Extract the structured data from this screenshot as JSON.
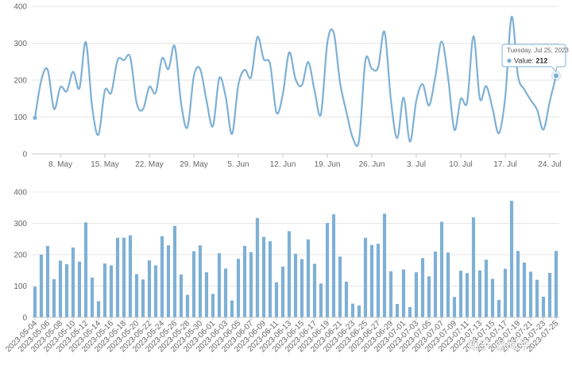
{
  "chart_data": [
    {
      "type": "line",
      "title": "",
      "xlabel": "",
      "ylabel": "",
      "ylim": [
        0,
        400
      ],
      "yticks": [
        0,
        100,
        200,
        300,
        400
      ],
      "xticks": [
        {
          "date": "2023-05-08",
          "label": "8. May"
        },
        {
          "date": "2023-05-15",
          "label": "15. May"
        },
        {
          "date": "2023-05-22",
          "label": "22. May"
        },
        {
          "date": "2023-05-29",
          "label": "29. May"
        },
        {
          "date": "2023-06-05",
          "label": "5. Jun"
        },
        {
          "date": "2023-06-12",
          "label": "12. Jun"
        },
        {
          "date": "2023-06-19",
          "label": "19. Jun"
        },
        {
          "date": "2023-06-26",
          "label": "26. Jun"
        },
        {
          "date": "2023-07-03",
          "label": "3. Jul"
        },
        {
          "date": "2023-07-10",
          "label": "10. Jul"
        },
        {
          "date": "2023-07-17",
          "label": "17. Jul"
        },
        {
          "date": "2023-07-24",
          "label": "24. Jul"
        }
      ],
      "grid": true,
      "color": "#7eb0d5",
      "tooltip": {
        "date": "2023-07-25",
        "date_label": "Tuesday, Jul 25, 2023",
        "series": "Value",
        "value": 212
      },
      "x": [
        "2023-05-04",
        "2023-05-05",
        "2023-05-06",
        "2023-05-07",
        "2023-05-08",
        "2023-05-09",
        "2023-05-10",
        "2023-05-11",
        "2023-05-12",
        "2023-05-13",
        "2023-05-14",
        "2023-05-15",
        "2023-05-16",
        "2023-05-17",
        "2023-05-18",
        "2023-05-19",
        "2023-05-20",
        "2023-05-21",
        "2023-05-22",
        "2023-05-23",
        "2023-05-24",
        "2023-05-25",
        "2023-05-26",
        "2023-05-27",
        "2023-05-28",
        "2023-05-29",
        "2023-05-30",
        "2023-05-31",
        "2023-06-01",
        "2023-06-02",
        "2023-06-03",
        "2023-06-04",
        "2023-06-05",
        "2023-06-06",
        "2023-06-07",
        "2023-06-08",
        "2023-06-09",
        "2023-06-10",
        "2023-06-11",
        "2023-06-12",
        "2023-06-13",
        "2023-06-14",
        "2023-06-15",
        "2023-06-16",
        "2023-06-17",
        "2023-06-18",
        "2023-06-19",
        "2023-06-20",
        "2023-06-21",
        "2023-06-22",
        "2023-06-23",
        "2023-06-24",
        "2023-06-25",
        "2023-06-26",
        "2023-06-27",
        "2023-06-28",
        "2023-06-29",
        "2023-06-30",
        "2023-07-01",
        "2023-07-02",
        "2023-07-03",
        "2023-07-04",
        "2023-07-05",
        "2023-07-06",
        "2023-07-07",
        "2023-07-08",
        "2023-07-09",
        "2023-07-10",
        "2023-07-11",
        "2023-07-12",
        "2023-07-13",
        "2023-07-14",
        "2023-07-15",
        "2023-07-16",
        "2023-07-17",
        "2023-07-18",
        "2023-07-19",
        "2023-07-20",
        "2023-07-21",
        "2023-07-22",
        "2023-07-23",
        "2023-07-24",
        "2023-07-25"
      ],
      "values": [
        98,
        200,
        228,
        122,
        181,
        170,
        223,
        178,
        303,
        127,
        52,
        172,
        166,
        254,
        254,
        262,
        138,
        121,
        182,
        166,
        259,
        230,
        292,
        137,
        72,
        211,
        230,
        144,
        75,
        205,
        156,
        54,
        187,
        228,
        208,
        317,
        257,
        243,
        112,
        162,
        275,
        203,
        186,
        249,
        171,
        108,
        301,
        329,
        194,
        114,
        44,
        38,
        254,
        231,
        235,
        331,
        147,
        43,
        153,
        33,
        144,
        189,
        131,
        210,
        305,
        207,
        65,
        149,
        141,
        319,
        150,
        184,
        123,
        56,
        155,
        372,
        212,
        175,
        146,
        120,
        66,
        142,
        212
      ]
    },
    {
      "type": "bar",
      "title": "",
      "xlabel": "",
      "ylabel": "",
      "ylim": [
        0,
        400
      ],
      "yticks": [
        0,
        100,
        200,
        300,
        400
      ],
      "grid": true,
      "color": "#7eb0d5",
      "xtick_labels": [
        "2023-05-04",
        "2023-05-06",
        "2023-05-08",
        "2023-05-10",
        "2023-05-12",
        "2023-05-14",
        "2023-05-16",
        "2023-05-18",
        "2023-05-20",
        "2023-05-22",
        "2023-05-24",
        "2023-05-26",
        "2023-05-28",
        "2023-05-30",
        "2023-06-01",
        "2023-06-03",
        "2023-06-05",
        "2023-06-07",
        "2023-06-09",
        "2023-06-11",
        "2023-06-13",
        "2023-06-15",
        "2023-06-17",
        "2023-06-19",
        "2023-06-21",
        "2023-06-23",
        "2023-06-25",
        "2023-06-27",
        "2023-06-29",
        "2023-07-01",
        "2023-07-03",
        "2023-07-05",
        "2023-07-07",
        "2023-07-09",
        "2023-07-11",
        "2023-07-13",
        "2023-07-15",
        "2023-07-17",
        "2023-07-19",
        "2023-07-21",
        "2023-07-23",
        "2023-07-25"
      ]
    }
  ],
  "watermark": "知乎 @闻牛"
}
